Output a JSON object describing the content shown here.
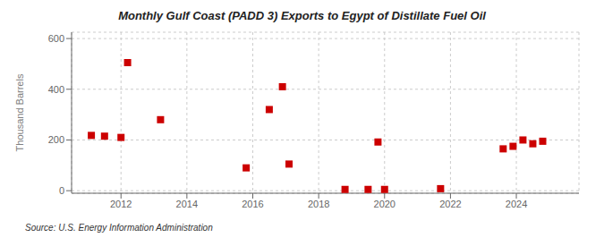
{
  "chart_data": {
    "type": "scatter",
    "title": "Monthly Gulf Coast (PADD 3) Exports to Egypt of Distillate Fuel Oil",
    "ylabel": "Thousand Barrels",
    "source": "Source: U.S. Energy Information Administration",
    "color": "#cc0000",
    "marker": "square",
    "grid": true,
    "xlim": [
      2010.5,
      2025.9
    ],
    "ylim": [
      -10,
      625
    ],
    "xticks": [
      2012,
      2014,
      2016,
      2018,
      2020,
      2022,
      2024
    ],
    "yticks": [
      0,
      200,
      400,
      600
    ],
    "x": [
      2011.1,
      2011.5,
      2012.0,
      2012.2,
      2013.2,
      2015.8,
      2016.5,
      2016.9,
      2017.1,
      2018.8,
      2019.5,
      2019.8,
      2020.0,
      2021.7,
      2023.6,
      2023.9,
      2024.2,
      2024.5,
      2024.8
    ],
    "values": [
      218,
      215,
      210,
      505,
      280,
      90,
      320,
      410,
      105,
      5,
      5,
      192,
      5,
      8,
      165,
      175,
      200,
      185,
      195
    ]
  }
}
